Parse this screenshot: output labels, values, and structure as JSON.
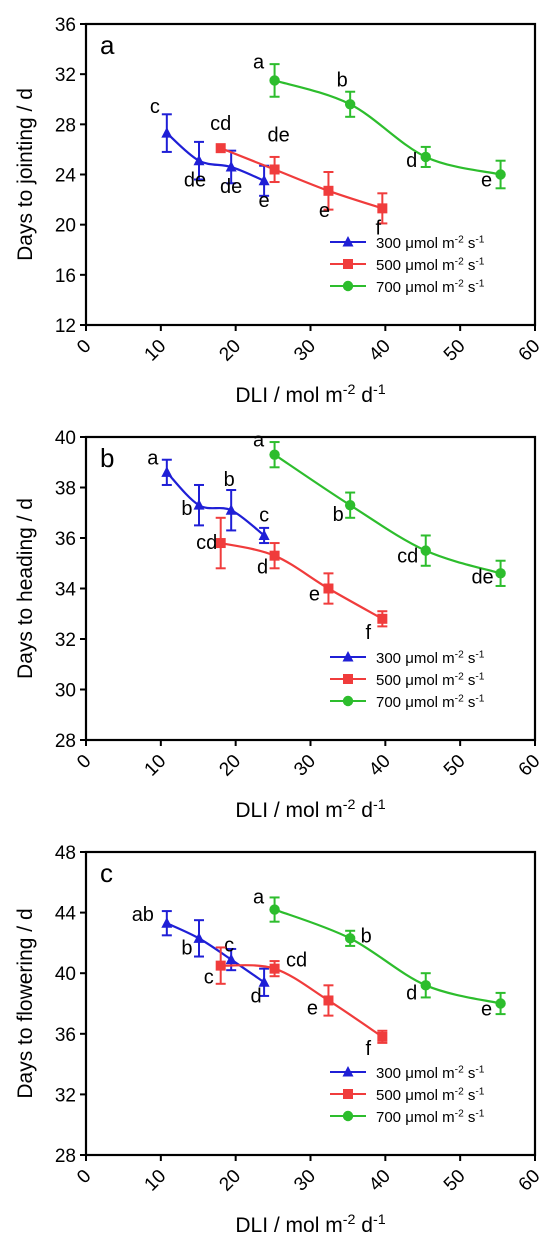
{
  "colors": {
    "s300": "#1f1fd6",
    "s500": "#f03c3c",
    "s700": "#2dbd2d",
    "axis": "#000000"
  },
  "legend_entries": [
    {
      "key": "s300",
      "prefix": "300 μmol m",
      "sup1": "-2",
      "mid": " s",
      "sup2": "-1",
      "marker": "triangle"
    },
    {
      "key": "s500",
      "prefix": "500 μmol m",
      "sup1": "-2",
      "mid": " s",
      "sup2": "-1",
      "marker": "square"
    },
    {
      "key": "s700",
      "prefix": "700 μmol m",
      "sup1": "-2",
      "mid": " s",
      "sup2": "-1",
      "marker": "circle"
    }
  ],
  "xlabel": {
    "prefix": "DLI / mol m",
    "sup1": "-2",
    "mid": " d",
    "sup2": "-1"
  },
  "chart_data": [
    {
      "type": "line",
      "panel_label": "a",
      "ylabel": "Days to jointing / d",
      "xlim": [
        0,
        60
      ],
      "ylim": [
        12,
        36
      ],
      "x_ticks": [
        "0",
        "10",
        "20",
        "30",
        "40",
        "50",
        "60"
      ],
      "y_ticks": [
        "12",
        "16",
        "20",
        "24",
        "28",
        "32",
        "36"
      ],
      "legend": "bottom-right",
      "series": [
        {
          "name": "300 μmol m-2 s-1",
          "key": "s300",
          "marker": "triangle",
          "x": [
            10.8,
            15.1,
            19.4,
            23.8
          ],
          "y": [
            27.3,
            25.1,
            24.6,
            23.5
          ],
          "err": [
            1.5,
            1.5,
            1.3,
            1.2
          ],
          "labels": [
            "c",
            "de",
            "de",
            "e"
          ]
        },
        {
          "name": "500 μmol m-2 s-1",
          "key": "s500",
          "marker": "square",
          "x": [
            18.0,
            25.2,
            32.4,
            39.6
          ],
          "y": [
            26.1,
            24.4,
            22.7,
            21.3
          ],
          "err": [
            0.0,
            1.0,
            1.5,
            1.2
          ],
          "labels": [
            "cd",
            "de",
            "e",
            "f"
          ]
        },
        {
          "name": "700 μmol m-2 s-1",
          "key": "s700",
          "marker": "circle",
          "x": [
            25.2,
            35.3,
            45.4,
            55.4
          ],
          "y": [
            31.5,
            29.6,
            25.4,
            24.0
          ],
          "err": [
            1.3,
            1.0,
            0.8,
            1.1
          ],
          "labels": [
            "a",
            "b",
            "d",
            "e"
          ]
        }
      ]
    },
    {
      "type": "line",
      "panel_label": "b",
      "ylabel": "Days to heading / d",
      "xlim": [
        0,
        60
      ],
      "ylim": [
        28,
        40
      ],
      "x_ticks": [
        "0",
        "10",
        "20",
        "30",
        "40",
        "50",
        "60"
      ],
      "y_ticks": [
        "28",
        "30",
        "32",
        "34",
        "36",
        "38",
        "40"
      ],
      "legend": "bottom-right",
      "series": [
        {
          "name": "300 μmol m-2 s-1",
          "key": "s300",
          "marker": "triangle",
          "x": [
            10.8,
            15.1,
            19.4,
            23.8
          ],
          "y": [
            38.6,
            37.3,
            37.1,
            36.1
          ],
          "err": [
            0.5,
            0.8,
            0.8,
            0.3
          ],
          "labels": [
            "a",
            "b",
            "b",
            "c"
          ]
        },
        {
          "name": "500 μmol m-2 s-1",
          "key": "s500",
          "marker": "square",
          "x": [
            18.0,
            25.2,
            32.4,
            39.6
          ],
          "y": [
            35.8,
            35.3,
            34.0,
            32.8
          ],
          "err": [
            1.0,
            0.5,
            0.6,
            0.3
          ],
          "labels": [
            "cd",
            "d",
            "e",
            "f"
          ]
        },
        {
          "name": "700 μmol m-2 s-1",
          "key": "s700",
          "marker": "circle",
          "x": [
            25.2,
            35.3,
            45.4,
            55.4
          ],
          "y": [
            39.3,
            37.3,
            35.5,
            34.6
          ],
          "err": [
            0.5,
            0.5,
            0.6,
            0.5
          ],
          "labels": [
            "a",
            "b",
            "cd",
            "de"
          ]
        }
      ]
    },
    {
      "type": "line",
      "panel_label": "c",
      "ylabel": "Days to flowering / d",
      "xlim": [
        0,
        60
      ],
      "ylim": [
        28,
        48
      ],
      "x_ticks": [
        "0",
        "10",
        "20",
        "30",
        "40",
        "50",
        "60"
      ],
      "y_ticks": [
        "28",
        "32",
        "36",
        "40",
        "44",
        "48"
      ],
      "legend": "bottom-right",
      "series": [
        {
          "name": "300 μmol m-2 s-1",
          "key": "s300",
          "marker": "triangle",
          "x": [
            10.8,
            15.1,
            19.4,
            23.8
          ],
          "y": [
            43.3,
            42.3,
            40.9,
            39.4
          ],
          "err": [
            0.8,
            1.2,
            0.7,
            0.9
          ],
          "labels": [
            "ab",
            "b",
            "c",
            "d"
          ]
        },
        {
          "name": "500 μmol m-2 s-1",
          "key": "s500",
          "marker": "square",
          "x": [
            18.0,
            25.2,
            32.4,
            39.6
          ],
          "y": [
            40.5,
            40.3,
            38.2,
            35.8
          ],
          "err": [
            1.2,
            0.5,
            1.0,
            0.4
          ],
          "labels": [
            "c",
            "cd",
            "e",
            "f"
          ]
        },
        {
          "name": "700 μmol m-2 s-1",
          "key": "s700",
          "marker": "circle",
          "x": [
            25.2,
            35.3,
            45.4,
            55.4
          ],
          "y": [
            44.2,
            42.3,
            39.2,
            38.0
          ],
          "err": [
            0.8,
            0.5,
            0.8,
            0.7
          ],
          "labels": [
            "a",
            "b",
            "d",
            "e"
          ]
        }
      ]
    }
  ]
}
